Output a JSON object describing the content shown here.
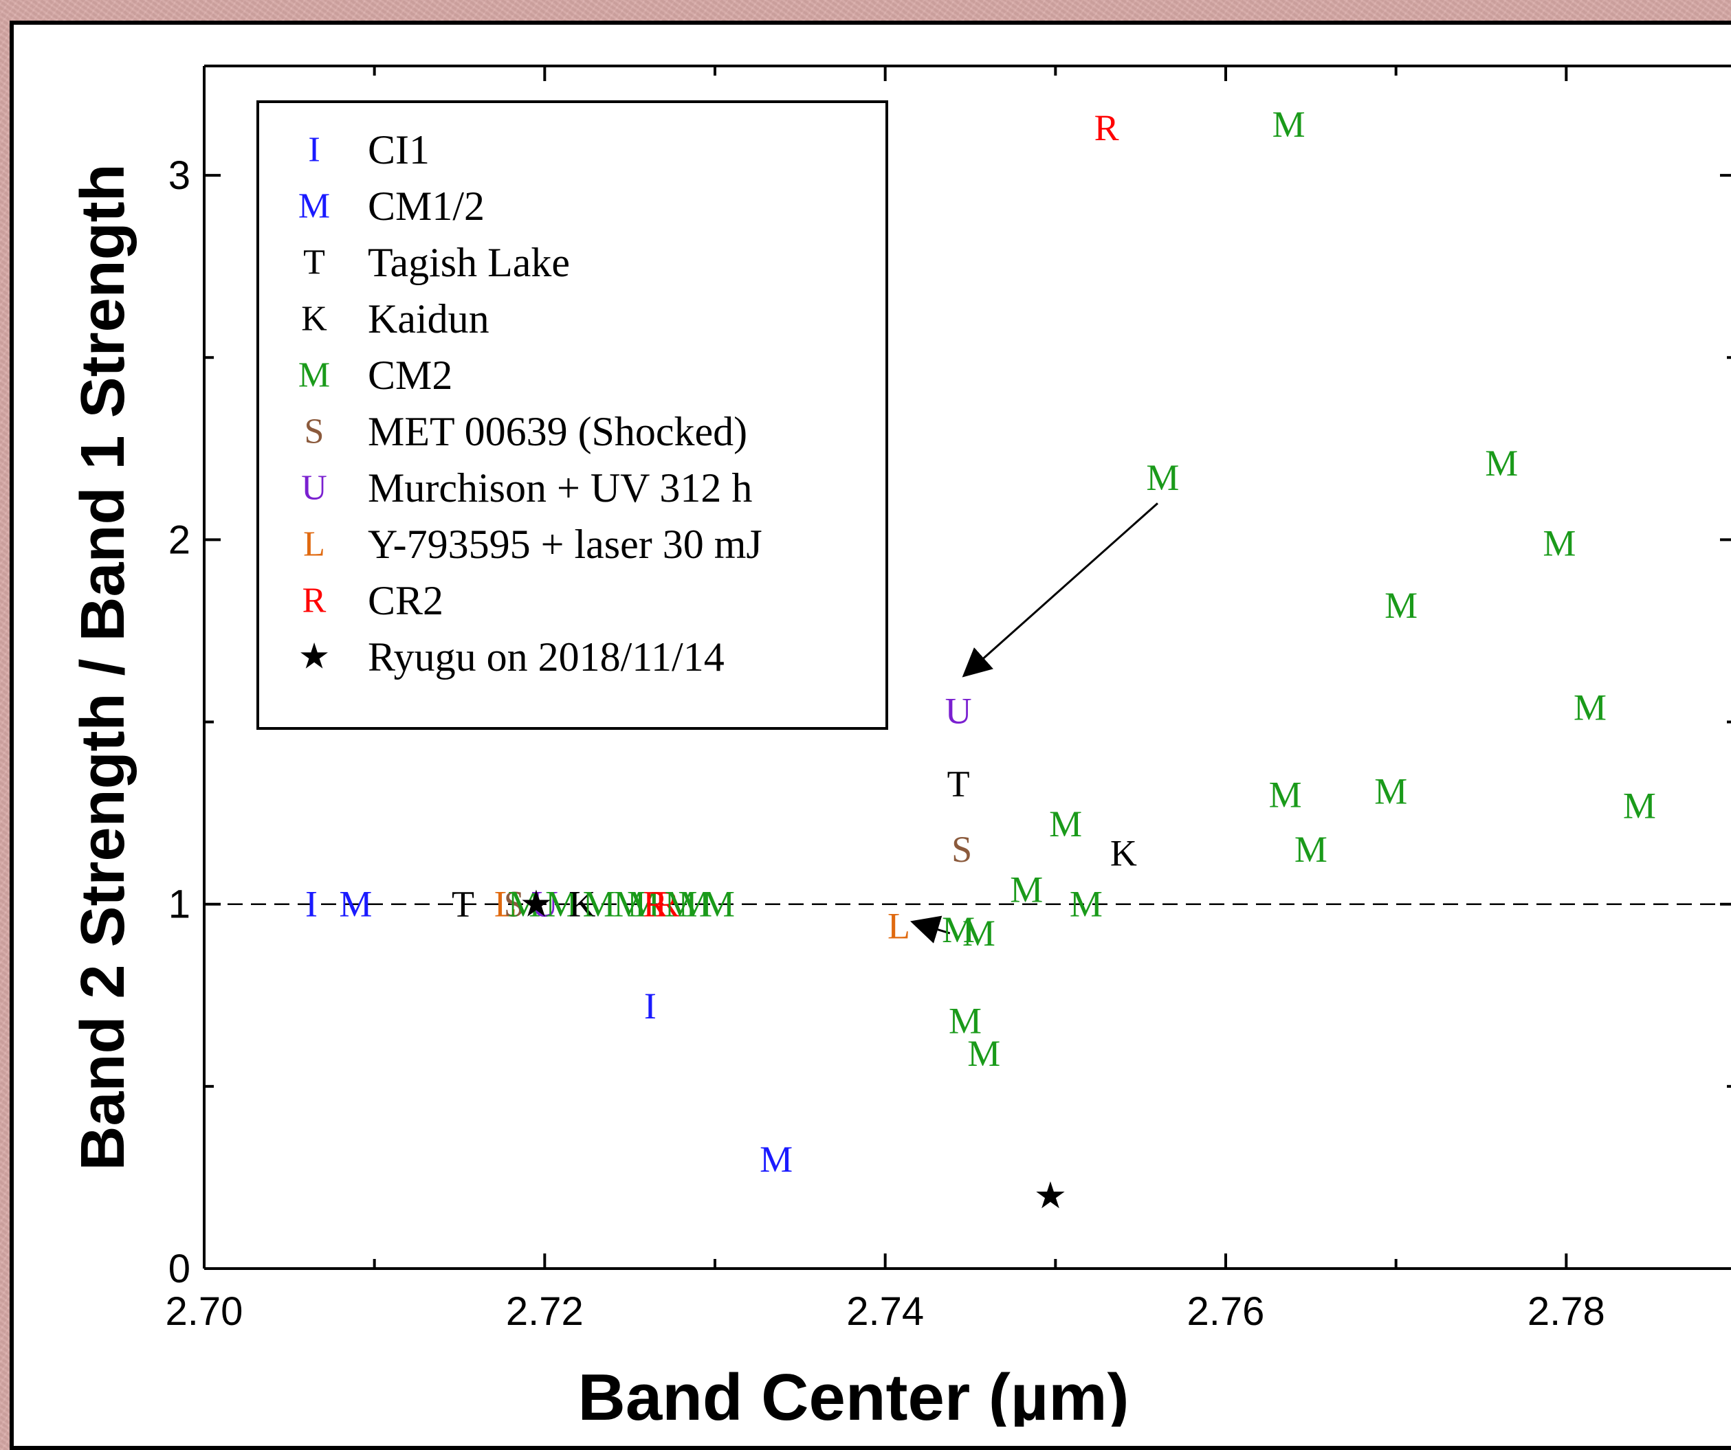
{
  "chart_data": {
    "type": "scatter",
    "xlabel": "Band Center (µm)",
    "ylabel": "Band 2 Strength / Band 1 Strength",
    "xlim": [
      2.7,
      2.79
    ],
    "ylim": [
      0,
      3.3
    ],
    "x_ticks": [
      "2.70",
      "2.72",
      "2.74",
      "2.76",
      "2.78"
    ],
    "x_tick_values": [
      2.7,
      2.72,
      2.74,
      2.76,
      2.78
    ],
    "y_ticks": [
      "0",
      "1",
      "2",
      "3"
    ],
    "y_tick_values": [
      0,
      1,
      2,
      3
    ],
    "reference_line": {
      "y": 1,
      "style": "dashed"
    },
    "legend_position": "top-left",
    "legend": [
      {
        "symbol": "I",
        "label": "CI1",
        "color": "#1a1aff"
      },
      {
        "symbol": "M",
        "label": "CM1/2",
        "color": "#1a1aff"
      },
      {
        "symbol": "T",
        "label": "Tagish Lake",
        "color": "#000000"
      },
      {
        "symbol": "K",
        "label": "Kaidun",
        "color": "#000000"
      },
      {
        "symbol": "M",
        "label": "CM2",
        "color": "#1a9a1a"
      },
      {
        "symbol": "S",
        "label": "MET 00639 (Shocked)",
        "color": "#8b5a3c"
      },
      {
        "symbol": "U",
        "label": "Murchison + UV 312 h",
        "color": "#7a20d0"
      },
      {
        "symbol": "L",
        "label": "Y-793595 + laser 30 mJ",
        "color": "#e06a10"
      },
      {
        "symbol": "R",
        "label": "CR2",
        "color": "#ff0000"
      },
      {
        "symbol": "★",
        "label": "Ryugu on 2018/11/14",
        "color": "#000000"
      }
    ],
    "points": [
      {
        "label": "R",
        "series": "CR2",
        "x": 2.753,
        "y": 3.13,
        "color": "#ff0000"
      },
      {
        "label": "M",
        "series": "CM2",
        "x": 2.7637,
        "y": 3.14,
        "color": "#1a9a1a"
      },
      {
        "label": "M",
        "series": "CM2",
        "x": 2.7563,
        "y": 2.17,
        "color": "#1a9a1a"
      },
      {
        "label": "M",
        "series": "CM2",
        "x": 2.7762,
        "y": 2.21,
        "color": "#1a9a1a"
      },
      {
        "label": "M",
        "series": "CM2",
        "x": 2.7796,
        "y": 1.99,
        "color": "#1a9a1a"
      },
      {
        "label": "M",
        "series": "CM2",
        "x": 2.7703,
        "y": 1.82,
        "color": "#1a9a1a"
      },
      {
        "label": "M",
        "series": "CM2",
        "x": 2.7814,
        "y": 1.54,
        "color": "#1a9a1a"
      },
      {
        "label": "U",
        "series": "Murchison + UV 312 h",
        "x": 2.7443,
        "y": 1.53,
        "color": "#7a20d0"
      },
      {
        "label": "T",
        "series": "Tagish Lake",
        "x": 2.7443,
        "y": 1.33,
        "color": "#000000"
      },
      {
        "label": "M",
        "series": "CM2",
        "x": 2.7635,
        "y": 1.3,
        "color": "#1a9a1a"
      },
      {
        "label": "M",
        "series": "CM2",
        "x": 2.7697,
        "y": 1.31,
        "color": "#1a9a1a"
      },
      {
        "label": "M",
        "series": "CM2",
        "x": 2.7843,
        "y": 1.27,
        "color": "#1a9a1a"
      },
      {
        "label": "M",
        "series": "CM2",
        "x": 2.7506,
        "y": 1.22,
        "color": "#1a9a1a"
      },
      {
        "label": "S",
        "series": "MET 00639 (Shocked)",
        "x": 2.7445,
        "y": 1.15,
        "color": "#8b5a3c"
      },
      {
        "label": "K",
        "series": "Kaidun",
        "x": 2.754,
        "y": 1.14,
        "color": "#000000"
      },
      {
        "label": "M",
        "series": "CM2",
        "x": 2.765,
        "y": 1.15,
        "color": "#1a9a1a"
      },
      {
        "label": "M",
        "series": "CM2",
        "x": 2.7483,
        "y": 1.04,
        "color": "#1a9a1a"
      },
      {
        "label": "M",
        "series": "CM2",
        "x": 2.7518,
        "y": 1.0,
        "color": "#1a9a1a"
      },
      {
        "label": "L",
        "series": "Y-793595 + laser 30 mJ",
        "x": 2.7408,
        "y": 0.94,
        "color": "#e06a10"
      },
      {
        "label": "M",
        "series": "CM2",
        "x": 2.7443,
        "y": 0.93,
        "color": "#1a9a1a"
      },
      {
        "label": "M",
        "series": "CM2",
        "x": 2.7455,
        "y": 0.92,
        "color": "#1a9a1a"
      },
      {
        "label": "M",
        "series": "CM2",
        "x": 2.7447,
        "y": 0.68,
        "color": "#1a9a1a"
      },
      {
        "label": "M",
        "series": "CM2",
        "x": 2.7458,
        "y": 0.59,
        "color": "#1a9a1a"
      },
      {
        "label": "I",
        "series": "CI1",
        "x": 2.7262,
        "y": 0.72,
        "color": "#1a1aff"
      },
      {
        "label": "M",
        "series": "CM1/2",
        "x": 2.7336,
        "y": 0.3,
        "color": "#1a1aff"
      },
      {
        "label": "★",
        "series": "Ryugu on 2018/11/14",
        "x": 2.7497,
        "y": 0.2,
        "color": "#000000"
      },
      {
        "label": "I",
        "series": "CI1",
        "x": 2.7063,
        "y": 1.0,
        "color": "#1a1aff"
      },
      {
        "label": "M",
        "series": "CM1/2",
        "x": 2.7089,
        "y": 1.0,
        "color": "#1a1aff"
      },
      {
        "label": "T",
        "series": "Tagish Lake",
        "x": 2.7152,
        "y": 1.0,
        "color": "#000000"
      },
      {
        "label": "L",
        "series": "Y-793595 + laser 30 mJ",
        "x": 2.7177,
        "y": 1.0,
        "color": "#e06a10"
      },
      {
        "label": "S",
        "series": "MET 00639 (Shocked)",
        "x": 2.7182,
        "y": 1.0,
        "color": "#8b5a3c"
      },
      {
        "label": "M",
        "series": "CM2",
        "x": 2.7188,
        "y": 1.0,
        "color": "#1a9a1a"
      },
      {
        "label": "U",
        "series": "Murchison + UV 312 h",
        "x": 2.72,
        "y": 1.0,
        "color": "#7a20d0"
      },
      {
        "label": "M",
        "series": "CM2",
        "x": 2.721,
        "y": 1.0,
        "color": "#1a9a1a"
      },
      {
        "label": "K",
        "series": "Kaidun",
        "x": 2.7222,
        "y": 1.0,
        "color": "#000000"
      },
      {
        "label": "M",
        "series": "CM2",
        "x": 2.7232,
        "y": 1.0,
        "color": "#1a9a1a"
      },
      {
        "label": "M",
        "series": "CM2",
        "x": 2.725,
        "y": 1.0,
        "color": "#1a9a1a"
      },
      {
        "label": "M",
        "series": "CM2",
        "x": 2.7258,
        "y": 1.0,
        "color": "#1a9a1a"
      },
      {
        "label": "R",
        "series": "CR2",
        "x": 2.7265,
        "y": 1.0,
        "color": "#ff0000"
      },
      {
        "label": "R",
        "series": "CR2",
        "x": 2.7272,
        "y": 1.0,
        "color": "#ff0000"
      },
      {
        "label": "M",
        "series": "CM2",
        "x": 2.728,
        "y": 1.0,
        "color": "#1a9a1a"
      },
      {
        "label": "M",
        "series": "CM2",
        "x": 2.7288,
        "y": 1.0,
        "color": "#1a9a1a"
      },
      {
        "label": "M",
        "series": "CM2",
        "x": 2.7302,
        "y": 1.0,
        "color": "#1a9a1a"
      },
      {
        "label": "★",
        "series": "Ryugu on 2018/11/14",
        "x": 2.7195,
        "y": 1.0,
        "color": "#000000"
      }
    ],
    "arrows": [
      {
        "from": [
          2.756,
          2.1
        ],
        "to": [
          2.7447,
          1.63
        ]
      },
      {
        "from": [
          2.7438,
          0.92
        ],
        "to": [
          2.7417,
          0.95
        ]
      }
    ]
  }
}
